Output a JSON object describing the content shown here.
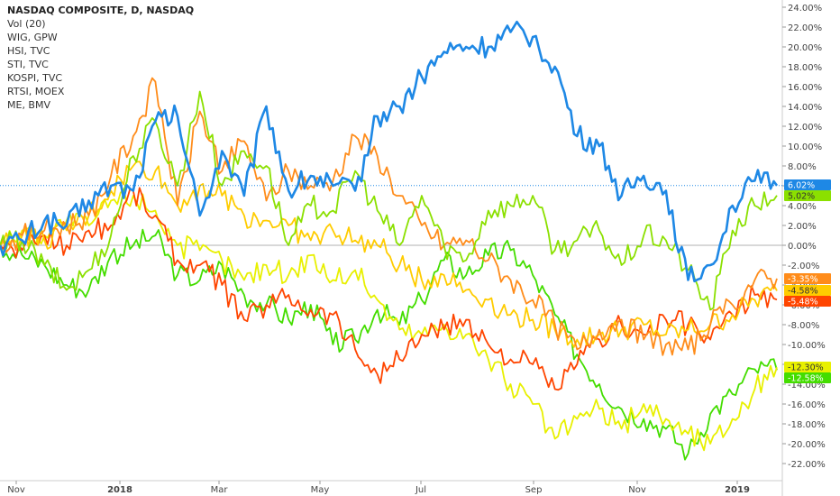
{
  "chart_data": {
    "type": "line",
    "legend": {
      "items": [
        "NASDAQ COMPOSITE, D, NASDAQ",
        "Vol (20)",
        "WIG, GPW",
        "HSI, TVC",
        "STI, TVC",
        "KOSPI, TVC",
        "RTSI, MOEX",
        "ME, BMV"
      ],
      "placement": "top-left"
    },
    "x_ticks": [
      "Nov",
      "2018",
      "Mar",
      "May",
      "Jul",
      "Sep",
      "Nov",
      "2019"
    ],
    "y_ticks": [
      "24.00%",
      "22.00%",
      "20.00%",
      "18.00%",
      "16.00%",
      "14.00%",
      "12.00%",
      "10.00%",
      "8.00%",
      "6.00%",
      "4.00%",
      "2.00%",
      "0.00%",
      "-2.00%",
      "-4.00%",
      "-6.00%",
      "-8.00%",
      "-10.00%",
      "-12.00%",
      "-14.00%",
      "-16.00%",
      "-18.00%",
      "-20.00%",
      "-22.00%"
    ],
    "ylim": [
      -23,
      25
    ],
    "zero_line": 0,
    "grid": false,
    "series": [
      {
        "color": "#1e88e5",
        "last_label": "6.02%",
        "last_value": 6.02,
        "values": [
          0,
          0.5,
          2.5,
          2.0,
          4.5,
          6.0,
          5.5,
          12.5,
          13.0,
          3.0,
          9.5,
          5.0,
          14.0,
          5.5,
          7.0,
          6.0,
          5.5,
          13.0,
          14.0,
          17.0,
          19.5,
          20.0,
          20.0,
          21.5,
          21.0,
          18.0,
          11.0,
          10.0,
          5.0,
          7.0,
          5.5,
          -3.5,
          -2.0,
          4.0,
          6.5,
          6.02
        ]
      },
      {
        "color": "#8be000",
        "last_label": "5.02%",
        "last_value": 5.02,
        "values": [
          0,
          0.5,
          -2.0,
          -4.5,
          -2.5,
          1.0,
          9.0,
          12.5,
          6.0,
          15.5,
          6.0,
          9.5,
          8.0,
          0.0,
          4.0,
          3.5,
          7.5,
          3.5,
          0.0,
          5.0,
          0.0,
          -1.5,
          3.5,
          4.0,
          5.0,
          -0.5,
          0.5,
          1.5,
          -2.0,
          1.0,
          0.5,
          -2.5,
          -6.5,
          1.5,
          4.0,
          5.02
        ]
      },
      {
        "color": "#ff8c1a",
        "last_label": "-3.35%",
        "last_value": -3.35,
        "values": [
          0,
          1.0,
          1.5,
          2.0,
          3.0,
          7.0,
          11.0,
          16.5,
          4.0,
          13.5,
          7.5,
          10.5,
          4.5,
          7.5,
          6.0,
          6.5,
          11.0,
          9.0,
          5.0,
          2.0,
          0.0,
          0.5,
          -1.5,
          -3.5,
          -5.5,
          -8.0,
          -10.5,
          -8.5,
          -7.5,
          -9.5,
          -10.0,
          -10.5,
          -8.0,
          -6.0,
          -3.5,
          -3.35
        ]
      },
      {
        "color": "#ffcc00",
        "last_label": "-4.58%",
        "last_value": -4.58,
        "values": [
          0,
          1.0,
          0.5,
          1.5,
          3.0,
          5.5,
          8.0,
          7.5,
          4.0,
          6.0,
          5.0,
          3.0,
          2.5,
          2.0,
          0.5,
          1.5,
          0.5,
          0.0,
          -2.0,
          -3.5,
          -3.0,
          -4.5,
          -5.5,
          -7.0,
          -7.5,
          -8.5,
          -9.5,
          -9.0,
          -8.5,
          -8.0,
          -9.0,
          -8.5,
          -8.0,
          -7.0,
          -5.5,
          -4.58
        ]
      },
      {
        "color": "#ff4500",
        "last_label": "-5.48%",
        "last_value": -5.48,
        "values": [
          0,
          -0.5,
          1.0,
          0.0,
          1.5,
          2.0,
          5.5,
          3.0,
          -1.5,
          -2.0,
          -4.0,
          -7.5,
          -6.0,
          -5.0,
          -6.5,
          -7.0,
          -10.5,
          -13.0,
          -11.5,
          -9.0,
          -8.5,
          -7.5,
          -10.0,
          -11.5,
          -12.0,
          -14.5,
          -12.0,
          -9.5,
          -8.0,
          -9.0,
          -7.5,
          -8.0,
          -9.5,
          -7.0,
          -5.0,
          -5.48
        ]
      },
      {
        "color": "#e8f000",
        "last_label": "-12.30%",
        "last_value": -12.3,
        "values": [
          0,
          1.5,
          1.0,
          2.5,
          2.0,
          4.5,
          5.0,
          3.5,
          0.0,
          -0.5,
          -1.5,
          -3.5,
          -2.0,
          -3.0,
          -1.0,
          -3.5,
          -2.5,
          -5.5,
          -8.5,
          -9.0,
          -8.0,
          -9.0,
          -11.5,
          -14.0,
          -16.0,
          -19.5,
          -17.5,
          -16.5,
          -18.5,
          -16.0,
          -17.5,
          -19.0,
          -20.0,
          -17.5,
          -14.5,
          -12.3
        ]
      },
      {
        "color": "#44dd00",
        "last_label": "-12.58%",
        "last_value": -12.58,
        "values": [
          0,
          -1.0,
          -2.0,
          -4.0,
          -4.5,
          -1.0,
          0.0,
          1.0,
          -3.0,
          -3.5,
          -2.0,
          -5.0,
          -6.0,
          -7.5,
          -6.0,
          -10.0,
          -9.5,
          -6.5,
          -8.0,
          -5.5,
          -1.5,
          -3.0,
          -1.0,
          -0.5,
          -3.0,
          -7.0,
          -11.0,
          -14.0,
          -16.5,
          -17.5,
          -18.5,
          -21.0,
          -17.0,
          -15.0,
          -12.5,
          -12.58
        ]
      }
    ]
  }
}
